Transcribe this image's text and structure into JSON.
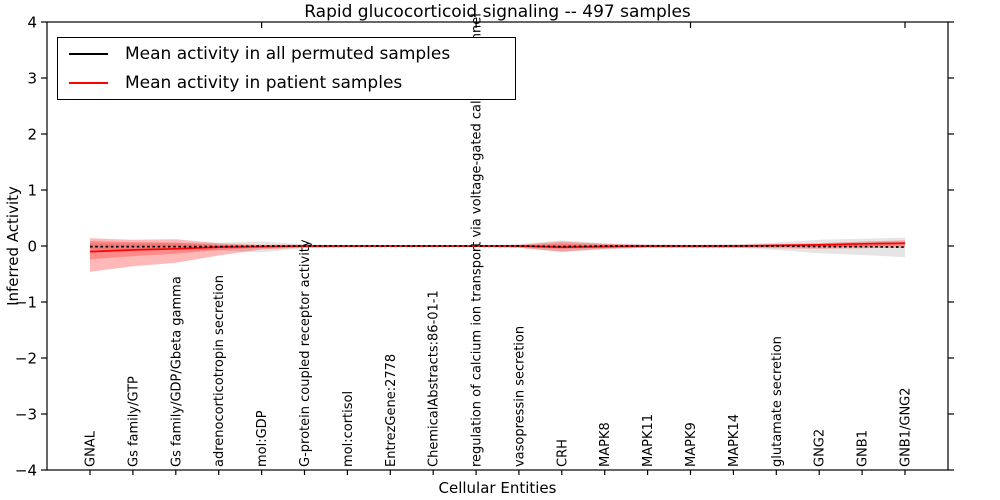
{
  "title": "Rapid glucocorticoid signaling -- 497 samples",
  "axes": {
    "x_label": "Cellular Entities",
    "y_label": "Inferred Activity"
  },
  "legend": {
    "items": [
      {
        "label": "Mean activity in all permuted samples",
        "color": "#000000"
      },
      {
        "label": "Mean activity in patient samples",
        "color": "#ff0000"
      }
    ]
  },
  "chart_data": {
    "type": "line",
    "title": "Rapid glucocorticoid signaling -- 497 samples",
    "xlabel": "Cellular Entities",
    "ylabel": "Inferred Activity",
    "ylim": [
      -4,
      4
    ],
    "yticks": [
      -4,
      -3,
      -2,
      -1,
      0,
      1,
      2,
      3,
      4
    ],
    "grid": false,
    "legend_position": "upper left",
    "categories": [
      "GNAL",
      "Gs family/GTP",
      "Gs family/GDP/Gbeta gamma",
      "adrenocorticotropin secretion",
      "mol:GDP",
      "G-protein coupled receptor activity",
      "mol:cortisol",
      "EntrezGene:2778",
      "ChemicalAbstracts:86-01-1",
      "regulation of calcium ion transport via voltage-gated calcium channel",
      "vasopressin secretion",
      "CRH",
      "MAPK8",
      "MAPK11",
      "MAPK9",
      "MAPK14",
      "glutamate secretion",
      "GNG2",
      "GNB1",
      "GNB1/GNG2"
    ],
    "series": [
      {
        "name": "Mean activity in all permuted samples",
        "color": "#000000",
        "style": "dashed",
        "values": [
          -0.01,
          -0.01,
          -0.01,
          -0.01,
          0,
          0,
          0,
          0,
          0,
          0,
          0,
          -0.01,
          0,
          0,
          0,
          0,
          0,
          -0.01,
          -0.01,
          -0.02
        ]
      },
      {
        "name": "Mean activity in patient samples",
        "color": "#ff0000",
        "style": "solid",
        "values": [
          -0.1,
          -0.07,
          -0.05,
          -0.02,
          -0.01,
          0,
          0,
          0,
          0,
          0,
          0,
          -0.02,
          -0.01,
          0,
          0,
          0,
          0.01,
          0.02,
          0.04,
          0.05
        ]
      }
    ],
    "bands": [
      {
        "name": "permuted-std-band",
        "color": "rgba(0,0,0,0.10)",
        "upper": [
          0.05,
          0.05,
          0.05,
          0.06,
          0.08,
          0.03,
          0.02,
          0.02,
          0.02,
          0.02,
          0.03,
          0.1,
          0.05,
          0.03,
          0.02,
          0.03,
          0.06,
          0.11,
          0.13,
          0.15
        ],
        "lower": [
          -0.06,
          -0.06,
          -0.06,
          -0.08,
          -0.11,
          -0.04,
          -0.03,
          -0.02,
          -0.02,
          -0.02,
          -0.03,
          -0.11,
          -0.06,
          -0.03,
          -0.03,
          -0.03,
          -0.07,
          -0.13,
          -0.16,
          -0.2
        ]
      },
      {
        "name": "patient-outer-band",
        "color": "rgba(255,0,0,0.28)",
        "upper": [
          0.14,
          0.11,
          0.12,
          0.05,
          0.02,
          0.02,
          0.01,
          0.01,
          0.01,
          0.01,
          0.02,
          0.08,
          0.04,
          0.02,
          0.02,
          0.02,
          0.03,
          0.05,
          0.08,
          0.1
        ],
        "lower": [
          -0.46,
          -0.36,
          -0.3,
          -0.17,
          -0.06,
          -0.03,
          -0.02,
          -0.02,
          -0.02,
          -0.02,
          -0.03,
          -0.1,
          -0.05,
          -0.03,
          -0.03,
          -0.03,
          -0.04,
          -0.05,
          -0.04,
          -0.03
        ]
      },
      {
        "name": "patient-inner-band",
        "color": "rgba(255,0,0,0.25)",
        "upper": [
          0.09,
          0.07,
          0.06,
          0.02,
          0.01,
          0.01,
          0.01,
          0.01,
          0.01,
          0.01,
          0.01,
          0.04,
          0.02,
          0.01,
          0.01,
          0.01,
          0.02,
          0.03,
          0.05,
          0.07
        ],
        "lower": [
          -0.24,
          -0.18,
          -0.14,
          -0.07,
          -0.03,
          -0.02,
          -0.01,
          -0.01,
          -0.01,
          -0.01,
          -0.02,
          -0.05,
          -0.03,
          -0.02,
          -0.02,
          -0.02,
          -0.02,
          -0.02,
          -0.01,
          0.01
        ]
      }
    ]
  }
}
